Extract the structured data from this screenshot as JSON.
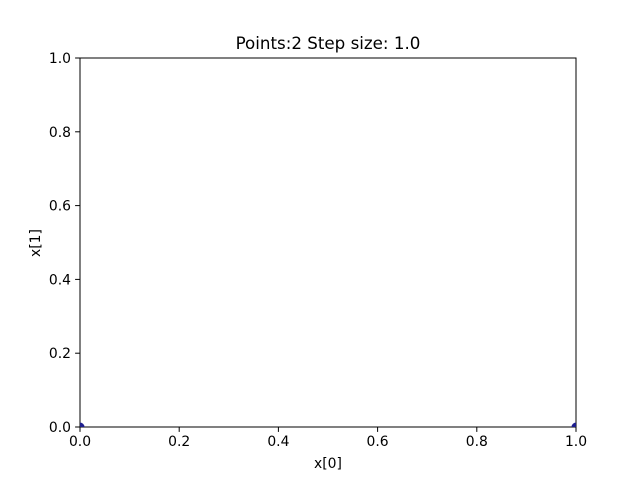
{
  "figure": {
    "title": "Points:2 Step size: 1.0"
  },
  "chart_data": {
    "type": "scatter",
    "title": "Points:2 Step size: 1.0",
    "xlabel": "x[0]",
    "ylabel": "x[1]",
    "xlim": [
      0.0,
      1.0
    ],
    "ylim": [
      0.0,
      1.0
    ],
    "xticks": [
      "0.0",
      "0.2",
      "0.4",
      "0.6",
      "0.8",
      "1.0"
    ],
    "yticks": [
      "0.0",
      "0.2",
      "0.4",
      "0.6",
      "0.8",
      "1.0"
    ],
    "grid": false,
    "series": [
      {
        "x": [
          0.0,
          1.0
        ],
        "y": [
          0.0,
          0.0
        ],
        "color": "#1f1f8f"
      }
    ]
  }
}
